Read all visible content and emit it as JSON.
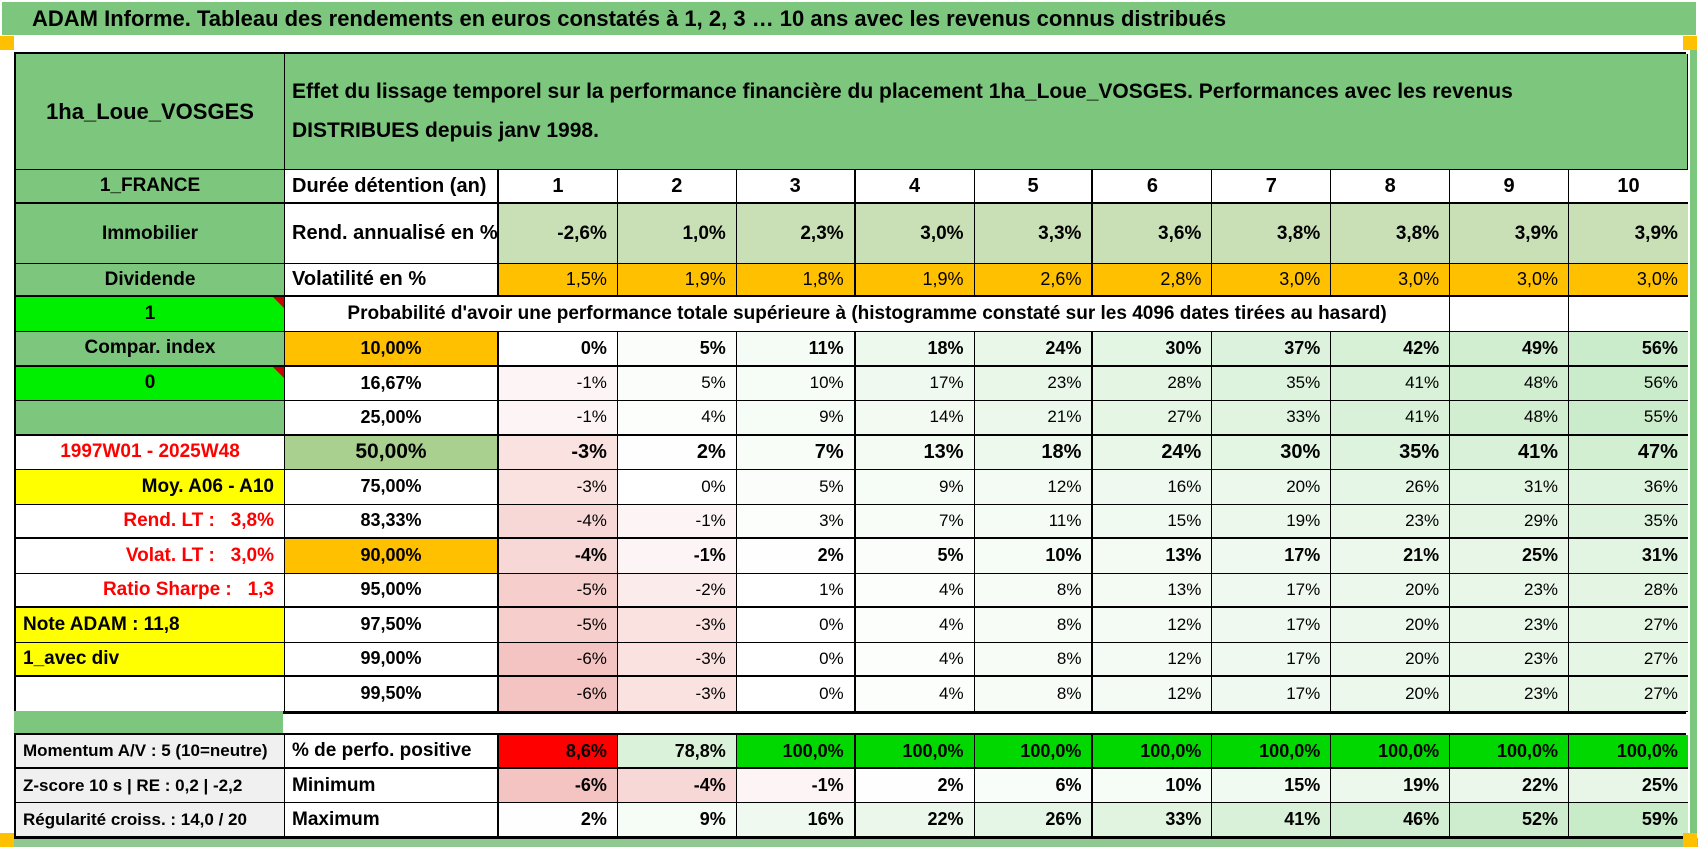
{
  "page": {
    "title": "ADAM Informe. Tableau des rendements en euros constatés à 1, 2, 3 … 10 ans avec les revenus connus distribués",
    "colors": {
      "header_green": "#7cc67d",
      "bright_green": "#00ee00",
      "orange": "#ffc000",
      "yellow": "#ffff00",
      "red": "#ff0000",
      "sage": "#c9dfb6",
      "green_50": "#a9d08e",
      "gray_label": "#f0f0f0",
      "perfo_green": "#00d800",
      "perfo_light_green": "#d9f2d9",
      "bottom_strip_green": "#8fc890"
    }
  },
  "table": {
    "product": "1ha_Loue_VOSGES",
    "region": "1_FRANCE",
    "description": "Effet du lissage temporel sur la performance financière du placement 1ha_Loue_VOSGES. Performances avec les revenus DISTRIBUES depuis janv 1998.",
    "duration_label": "Durée détention (an)",
    "durations": [
      "1",
      "2",
      "3",
      "4",
      "5",
      "6",
      "7",
      "8",
      "9",
      "10"
    ],
    "rows_top": [
      {
        "left": "Immobilier",
        "mid": "Rend. annualisé en %",
        "bg": "sage",
        "bold": true,
        "thickBottom": false,
        "values": [
          "-2,6%",
          "1,0%",
          "2,3%",
          "3,0%",
          "3,3%",
          "3,6%",
          "3,8%",
          "3,8%",
          "3,9%",
          "3,9%"
        ]
      },
      {
        "left": "Dividende",
        "mid": "Volatilité en %",
        "bg": "orange",
        "bold": false,
        "thickBottom": true,
        "values": [
          "1,5%",
          "1,9%",
          "1,8%",
          "1,9%",
          "2,6%",
          "2,8%",
          "3,0%",
          "3,0%",
          "3,0%",
          "3,0%"
        ]
      }
    ],
    "probability_marker": "1",
    "probability_note": "Probabilité d'avoir une performance totale supérieure à (histogramme constaté sur les 4096 dates tirées au hasard)",
    "percentile_rows": [
      {
        "left": "Compar. index",
        "leftStyle": "green",
        "pct": "10,00%",
        "pctStyle": "orange",
        "emph": "bold",
        "thickBottom": true,
        "values": [
          "0%",
          "5%",
          "11%",
          "18%",
          "24%",
          "30%",
          "37%",
          "42%",
          "49%",
          "56%"
        ]
      },
      {
        "left": "0",
        "leftStyle": "bright",
        "pct": "16,67%",
        "pctStyle": "plain",
        "emph": "none",
        "thickBottom": false,
        "values": [
          "-1%",
          "5%",
          "10%",
          "17%",
          "23%",
          "28%",
          "35%",
          "41%",
          "48%",
          "56%"
        ]
      },
      {
        "left": "",
        "leftStyle": "green",
        "pct": "25,00%",
        "pctStyle": "plain",
        "emph": "none",
        "thickBottom": true,
        "values": [
          "-1%",
          "4%",
          "9%",
          "14%",
          "21%",
          "27%",
          "33%",
          "41%",
          "48%",
          "55%"
        ]
      },
      {
        "left": "1997W01 - 2025W48",
        "leftStyle": "red-center",
        "pct": "50,00%",
        "pctStyle": "green50",
        "emph": "big",
        "thickBottom": false,
        "values": [
          "-3%",
          "2%",
          "7%",
          "13%",
          "18%",
          "24%",
          "30%",
          "35%",
          "41%",
          "47%"
        ]
      },
      {
        "left": "Moy. A06 - A10",
        "leftStyle": "yellow-right",
        "pct": "75,00%",
        "pctStyle": "plain",
        "emph": "none",
        "thickBottom": false,
        "values": [
          "-3%",
          "0%",
          "5%",
          "9%",
          "12%",
          "16%",
          "20%",
          "26%",
          "31%",
          "36%"
        ]
      },
      {
        "left": "Rend. LT :   3,8%",
        "leftStyle": "red-right",
        "pct": "83,33%",
        "pctStyle": "plain",
        "emph": "none",
        "thickBottom": true,
        "values": [
          "-4%",
          "-1%",
          "3%",
          "7%",
          "11%",
          "15%",
          "19%",
          "23%",
          "29%",
          "35%"
        ]
      },
      {
        "left": "Volat. LT :   3,0%",
        "leftStyle": "red-right",
        "pct": "90,00%",
        "pctStyle": "orange",
        "emph": "bold",
        "thickBottom": false,
        "values": [
          "-4%",
          "-1%",
          "2%",
          "5%",
          "10%",
          "13%",
          "17%",
          "21%",
          "25%",
          "31%"
        ]
      },
      {
        "left": "Ratio Sharpe :   1,3",
        "leftStyle": "red-right",
        "pct": "95,00%",
        "pctStyle": "plain",
        "emph": "none",
        "thickBottom": true,
        "values": [
          "-5%",
          "-2%",
          "1%",
          "4%",
          "8%",
          "13%",
          "17%",
          "20%",
          "23%",
          "28%"
        ]
      },
      {
        "left": "Note ADAM : 11,8",
        "leftStyle": "yellow-left",
        "pct": "97,50%",
        "pctStyle": "plain",
        "emph": "none",
        "thickBottom": false,
        "values": [
          "-5%",
          "-3%",
          "0%",
          "4%",
          "8%",
          "12%",
          "17%",
          "20%",
          "23%",
          "27%"
        ]
      },
      {
        "left": "1_avec div",
        "leftStyle": "yellow-left",
        "pct": "99,00%",
        "pctStyle": "plain",
        "emph": "none",
        "thickBottom": true,
        "values": [
          "-6%",
          "-3%",
          "0%",
          "4%",
          "8%",
          "12%",
          "17%",
          "20%",
          "23%",
          "27%"
        ]
      },
      {
        "left": "",
        "leftStyle": "blank",
        "pct": "99,50%",
        "pctStyle": "plain",
        "emph": "none",
        "thickBottom": false,
        "values": [
          "-6%",
          "-3%",
          "0%",
          "4%",
          "8%",
          "12%",
          "17%",
          "20%",
          "23%",
          "27%"
        ]
      }
    ],
    "footer_rows": [
      {
        "left": "Momentum A/V : 5 (10=neutre)",
        "mid": "% de perfo. positive",
        "bg": "explicit",
        "thickBottom": true,
        "bgs": [
          "#ff0000",
          "#d9f2d9",
          "#00d800",
          "#00d800",
          "#00d800",
          "#00d800",
          "#00d800",
          "#00d800",
          "#00d800",
          "#00d800"
        ],
        "values": [
          "8,6%",
          "78,8%",
          "100,0%",
          "100,0%",
          "100,0%",
          "100,0%",
          "100,0%",
          "100,0%",
          "100,0%",
          "100,0%"
        ]
      },
      {
        "left": "Z-score 10 s | RE : 0,2 | -2,2",
        "mid": "Minimum",
        "bg": "scale",
        "thickBottom": false,
        "values": [
          "-6%",
          "-4%",
          "-1%",
          "2%",
          "6%",
          "10%",
          "15%",
          "19%",
          "22%",
          "25%"
        ]
      },
      {
        "left": "Régularité croiss. : 14,0 / 20",
        "mid": "Maximum",
        "bg": "scale",
        "thickBottom": false,
        "values": [
          "2%",
          "9%",
          "16%",
          "22%",
          "26%",
          "33%",
          "41%",
          "46%",
          "52%",
          "59%"
        ]
      }
    ]
  }
}
